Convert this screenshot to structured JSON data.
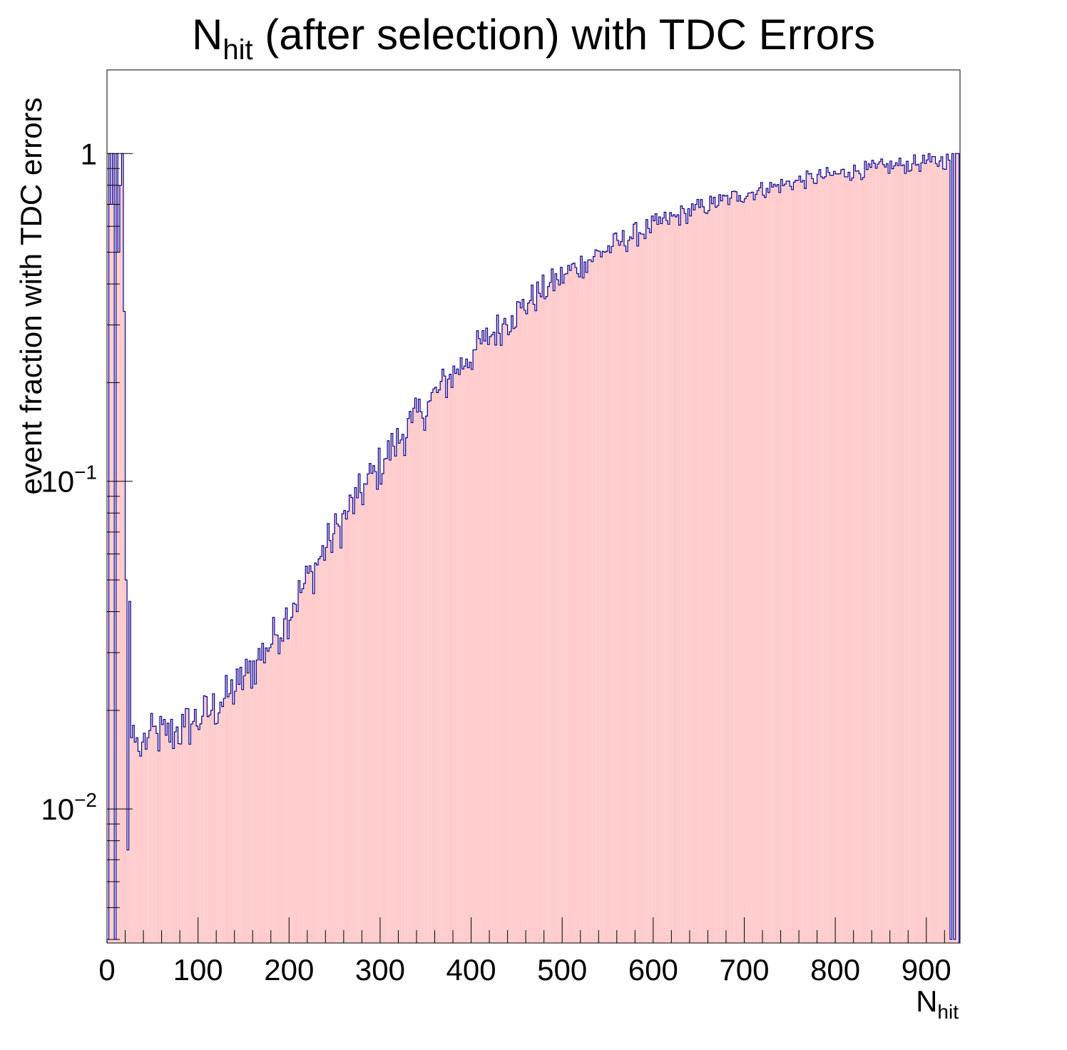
{
  "chart_data": {
    "type": "bar",
    "histogram": true,
    "title": {
      "main": "N",
      "sub": "hit",
      "rest": " (after selection) with TDC Errors"
    },
    "xlabel": {
      "main": "N",
      "sub": "hit"
    },
    "ylabel": "event fraction with TDC errors",
    "xlim": [
      0,
      937
    ],
    "ylim": [
      0.0039,
      1.8
    ],
    "yscale": "log",
    "bin_width": 2,
    "x_ticks": [
      0,
      100,
      200,
      300,
      400,
      500,
      600,
      700,
      800,
      900
    ],
    "y_ticks": [
      {
        "value": 0.01,
        "base": "10",
        "exp": "−2"
      },
      {
        "value": 0.1,
        "base": "10",
        "exp": "−1"
      },
      {
        "value": 1,
        "base": "1",
        "exp": ""
      }
    ],
    "fill_color": "#ffcccc",
    "line_color": "#000099",
    "grid": false,
    "points": [
      [
        1,
        0.004
      ],
      [
        3,
        1.0
      ],
      [
        5,
        0.7
      ],
      [
        7,
        1.0
      ],
      [
        9,
        0.004
      ],
      [
        11,
        1.0
      ],
      [
        13,
        0.5
      ],
      [
        15,
        0.8
      ],
      [
        17,
        1.0
      ],
      [
        19,
        0.33
      ],
      [
        21,
        0.05
      ],
      [
        23,
        0.0075
      ],
      [
        25,
        0.043
      ],
      [
        27,
        0.0165
      ],
      [
        29,
        0.018
      ],
      [
        31,
        0.016
      ],
      [
        33,
        0.0165
      ],
      [
        35,
        0.015
      ],
      [
        37,
        0.0145
      ],
      [
        39,
        0.016
      ],
      [
        45,
        0.0165
      ],
      [
        55,
        0.017
      ],
      [
        65,
        0.0168
      ],
      [
        75,
        0.0172
      ],
      [
        85,
        0.0178
      ],
      [
        95,
        0.0185
      ],
      [
        105,
        0.0192
      ],
      [
        115,
        0.02
      ],
      [
        125,
        0.0212
      ],
      [
        135,
        0.0225
      ],
      [
        145,
        0.024
      ],
      [
        155,
        0.026
      ],
      [
        165,
        0.0285
      ],
      [
        175,
        0.031
      ],
      [
        185,
        0.034
      ],
      [
        195,
        0.038
      ],
      [
        205,
        0.0425
      ],
      [
        215,
        0.047
      ],
      [
        225,
        0.053
      ],
      [
        235,
        0.059
      ],
      [
        245,
        0.066
      ],
      [
        255,
        0.073
      ],
      [
        265,
        0.081
      ],
      [
        275,
        0.089
      ],
      [
        285,
        0.098
      ],
      [
        295,
        0.107
      ],
      [
        305,
        0.117
      ],
      [
        315,
        0.128
      ],
      [
        325,
        0.139
      ],
      [
        335,
        0.151
      ],
      [
        345,
        0.163
      ],
      [
        355,
        0.176
      ],
      [
        365,
        0.19
      ],
      [
        375,
        0.205
      ],
      [
        385,
        0.22
      ],
      [
        395,
        0.236
      ],
      [
        405,
        0.252
      ],
      [
        415,
        0.268
      ],
      [
        425,
        0.285
      ],
      [
        435,
        0.302
      ],
      [
        445,
        0.32
      ],
      [
        455,
        0.338
      ],
      [
        465,
        0.356
      ],
      [
        475,
        0.375
      ],
      [
        485,
        0.393
      ],
      [
        495,
        0.412
      ],
      [
        505,
        0.43
      ],
      [
        515,
        0.449
      ],
      [
        525,
        0.467
      ],
      [
        535,
        0.485
      ],
      [
        545,
        0.503
      ],
      [
        555,
        0.521
      ],
      [
        565,
        0.539
      ],
      [
        575,
        0.557
      ],
      [
        585,
        0.574
      ],
      [
        595,
        0.591
      ],
      [
        605,
        0.608
      ],
      [
        615,
        0.625
      ],
      [
        625,
        0.641
      ],
      [
        635,
        0.657
      ],
      [
        645,
        0.673
      ],
      [
        655,
        0.688
      ],
      [
        665,
        0.703
      ],
      [
        675,
        0.717
      ],
      [
        685,
        0.731
      ],
      [
        695,
        0.745
      ],
      [
        705,
        0.758
      ],
      [
        715,
        0.771
      ],
      [
        725,
        0.783
      ],
      [
        735,
        0.795
      ],
      [
        745,
        0.807
      ],
      [
        755,
        0.818
      ],
      [
        765,
        0.829
      ],
      [
        775,
        0.839
      ],
      [
        785,
        0.849
      ],
      [
        795,
        0.859
      ],
      [
        805,
        0.868
      ],
      [
        815,
        0.877
      ],
      [
        825,
        0.886
      ],
      [
        835,
        0.894
      ],
      [
        845,
        0.902
      ],
      [
        855,
        0.91
      ],
      [
        865,
        0.917
      ],
      [
        875,
        0.924
      ],
      [
        885,
        0.931
      ],
      [
        895,
        0.937
      ],
      [
        905,
        0.943
      ],
      [
        915,
        0.949
      ],
      [
        925,
        0.955
      ],
      [
        927,
        0.004
      ],
      [
        929,
        1.0
      ],
      [
        931,
        0.004
      ],
      [
        933,
        1.0
      ],
      [
        935,
        1.0
      ]
    ]
  }
}
